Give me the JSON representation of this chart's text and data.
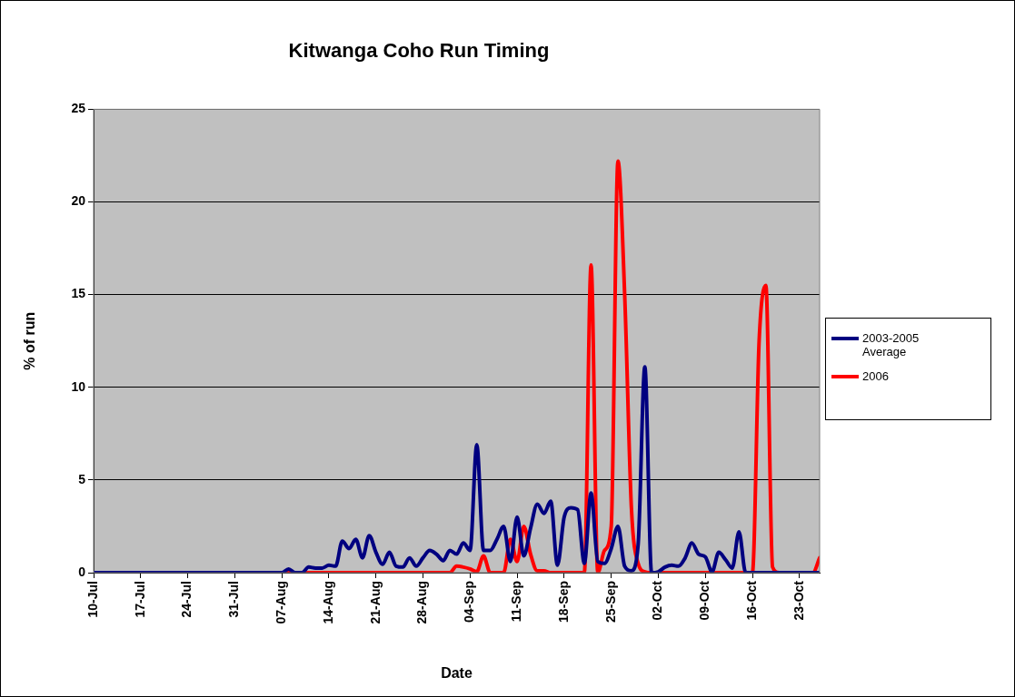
{
  "chart_data": {
    "type": "line",
    "title": "Kitwanga Coho Run Timing",
    "xlabel": "Date",
    "ylabel": "% of run",
    "xlim": [
      "--07-10",
      "--10-26"
    ],
    "xticks": [
      {
        "value": "--07-10",
        "label": "10-Jul"
      },
      {
        "value": "--07-17",
        "label": "17-Jul"
      },
      {
        "value": "--07-24",
        "label": "24-Jul"
      },
      {
        "value": "--07-31",
        "label": "31-Jul"
      },
      {
        "value": "--08-07",
        "label": "07-Aug"
      },
      {
        "value": "--08-14",
        "label": "14-Aug"
      },
      {
        "value": "--08-21",
        "label": "21-Aug"
      },
      {
        "value": "--08-28",
        "label": "28-Aug"
      },
      {
        "value": "--09-04",
        "label": "04-Sep"
      },
      {
        "value": "--09-11",
        "label": "11-Sep"
      },
      {
        "value": "--09-18",
        "label": "18-Sep"
      },
      {
        "value": "--09-25",
        "label": "25-Sep"
      },
      {
        "value": "--10-02",
        "label": "02-Oct"
      },
      {
        "value": "--10-09",
        "label": "09-Oct"
      },
      {
        "value": "--10-16",
        "label": "16-Oct"
      },
      {
        "value": "--10-23",
        "label": "23-Oct"
      }
    ],
    "ylim": [
      0,
      25
    ],
    "yticks": [
      0,
      5,
      10,
      15,
      20,
      25
    ],
    "grid": "y",
    "legend": "right",
    "marker": "none",
    "line_style": "solid",
    "series": [
      {
        "name": "2003-2005 Average",
        "color": "#000080",
        "x": [
          "--07-10",
          "--08-07",
          "--08-08",
          "--08-09",
          "--08-10",
          "--08-11",
          "--08-12",
          "--08-13",
          "--08-14",
          "--08-15",
          "--08-16",
          "--08-17",
          "--08-18",
          "--08-19",
          "--08-20",
          "--08-21",
          "--08-22",
          "--08-23",
          "--08-24",
          "--08-25",
          "--08-26",
          "--08-27",
          "--08-28",
          "--08-29",
          "--08-30",
          "--08-31",
          "--09-01",
          "--09-02",
          "--09-03",
          "--09-04",
          "--09-05",
          "--09-06",
          "--09-07",
          "--09-08",
          "--09-09",
          "--09-10",
          "--09-11",
          "--09-12",
          "--09-13",
          "--09-14",
          "--09-15",
          "--09-16",
          "--09-17",
          "--09-18",
          "--09-19",
          "--09-20",
          "--09-21",
          "--09-22",
          "--09-23",
          "--09-24",
          "--09-25",
          "--09-26",
          "--09-27",
          "--09-28",
          "--09-29",
          "--09-30",
          "--10-01",
          "--10-02",
          "--10-03",
          "--10-04",
          "--10-05",
          "--10-06",
          "--10-07",
          "--10-08",
          "--10-09",
          "--10-10",
          "--10-11",
          "--10-12",
          "--10-13",
          "--10-14",
          "--10-15",
          "--10-26"
        ],
        "values": [
          0,
          0,
          0.2,
          0,
          0,
          0.3,
          0.25,
          0.25,
          0.4,
          0.35,
          1.7,
          1.3,
          1.8,
          0.8,
          2.0,
          1.1,
          0.45,
          1.1,
          0.35,
          0.3,
          0.8,
          0.35,
          0.8,
          1.2,
          1.0,
          0.65,
          1.2,
          1.0,
          1.6,
          1.2,
          6.9,
          1.2,
          1.2,
          1.8,
          2.5,
          0.6,
          3.0,
          0.9,
          2.4,
          3.7,
          3.2,
          3.85,
          0.4,
          3.0,
          3.5,
          3.4,
          0.5,
          4.3,
          0.6,
          0.5,
          1.3,
          2.5,
          0.35,
          0.1,
          1.5,
          11.1,
          0,
          0.05,
          0.3,
          0.4,
          0.35,
          0.8,
          1.6,
          1.0,
          0.85,
          0.05,
          1.1,
          0.7,
          0.25,
          2.2,
          0,
          0
        ]
      },
      {
        "name": "2006",
        "color": "#ff0000",
        "x": [
          "--07-10",
          "--09-01",
          "--09-02",
          "--09-03",
          "--09-04",
          "--09-05",
          "--09-06",
          "--09-07",
          "--09-09",
          "--09-10",
          "--09-11",
          "--09-12",
          "--09-13",
          "--09-14",
          "--09-15",
          "--09-16",
          "--09-21",
          "--09-22",
          "--09-23",
          "--09-24",
          "--09-25",
          "--09-26",
          "--09-27",
          "--09-28",
          "--09-29",
          "--09-30",
          "--10-01",
          "--10-16",
          "--10-17",
          "--10-18",
          "--10-19",
          "--10-20",
          "--10-25",
          "--10-26"
        ],
        "values": [
          0,
          0,
          0.35,
          0.3,
          0.2,
          0.05,
          0.9,
          0,
          0,
          1.8,
          0.6,
          2.5,
          1.0,
          0.1,
          0.1,
          0,
          0,
          16.6,
          0,
          1.2,
          2.5,
          22.2,
          15,
          3.5,
          0.5,
          0.05,
          0,
          0,
          12.5,
          15.5,
          0.3,
          0,
          0,
          0.8
        ]
      }
    ]
  }
}
